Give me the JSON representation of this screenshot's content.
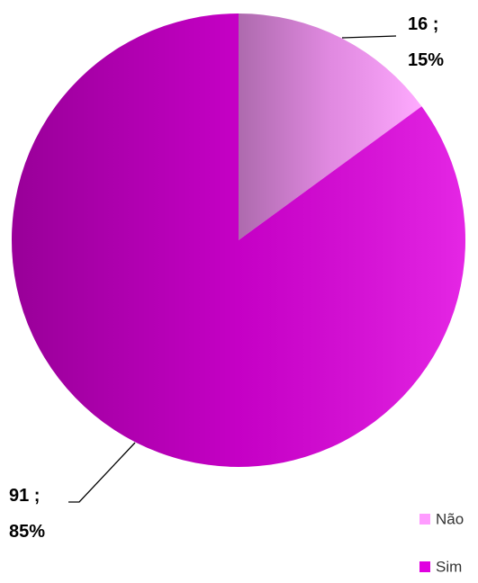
{
  "chart_data": {
    "type": "pie",
    "categories": [
      "Não",
      "Sim"
    ],
    "values": [
      16,
      91
    ],
    "value_labels": [
      "16 ; 15%",
      "91 ; 85%"
    ],
    "colors": [
      "#ff9cff",
      "#e000e0"
    ],
    "legend": "bottom-right"
  }
}
